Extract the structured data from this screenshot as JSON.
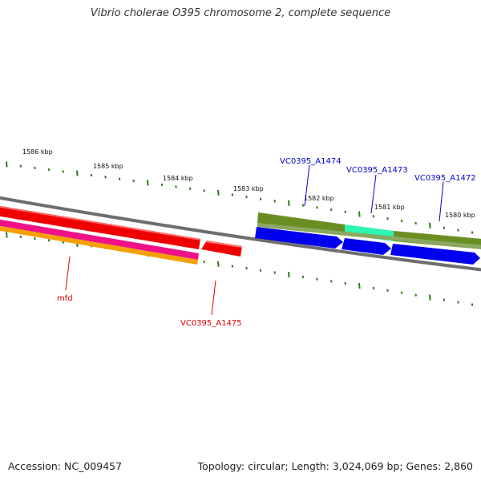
{
  "title": "Vibrio cholerae O395 chromosome 2, complete sequence",
  "footer": {
    "accession": "Accession: NC_009457",
    "topology": "Topology: circular; Length: 3,024,069 bp; Genes: 2,860"
  },
  "colors": {
    "backbone": "#888888",
    "tick": "#2e7d1e",
    "ruler_label": "#111111",
    "red_feature": "#ee0000",
    "blue_feature": "#0000ee",
    "olive_feature": "#6b8e23",
    "teal_feature": "#2ef5b0",
    "magenta_feature": "#ee1188",
    "orange_feature": "#f5a000",
    "red_label": "#dd0000",
    "blue_label": "#0000cc"
  },
  "ruler_labels": [
    "1586 kbp",
    "1585 kbp",
    "1584 kbp",
    "1583 kbp",
    "1582 kbp",
    "1581 kbp",
    "1580 kbp"
  ],
  "gene_labels": [
    {
      "id": "VC0395_A1474",
      "text": "VC0395_A1474",
      "strand": "plus"
    },
    {
      "id": "VC0395_A1473",
      "text": "VC0395_A1473",
      "strand": "plus"
    },
    {
      "id": "VC0395_A1472",
      "text": "VC0395_A1472",
      "strand": "plus"
    },
    {
      "id": "mfd",
      "text": "mfd",
      "strand": "minus"
    },
    {
      "id": "VC0395_A1475",
      "text": "VC0395_A1475",
      "strand": "minus"
    }
  ]
}
